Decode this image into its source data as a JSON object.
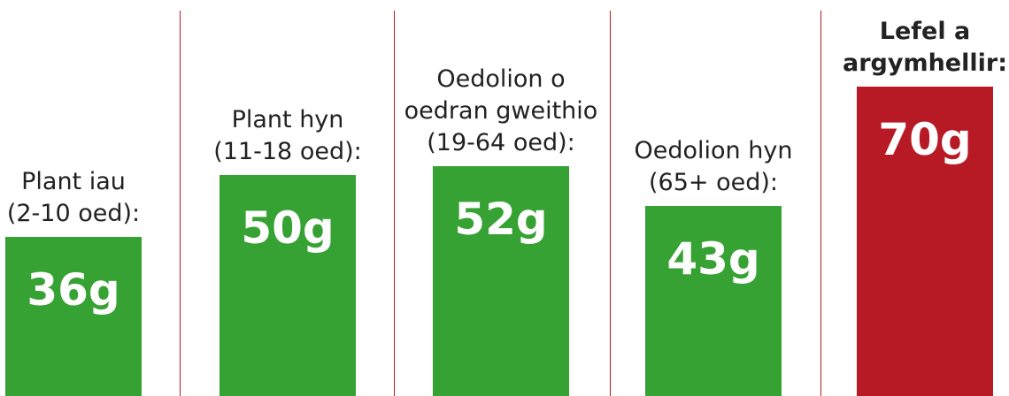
{
  "chart_data": {
    "type": "bar",
    "categories": [
      [
        "Plant iau",
        "(2-10 oed):"
      ],
      [
        "Plant hyn",
        "(11-18 oed):"
      ],
      [
        "Oedolion o",
        "oedran gweithio",
        "(19-64 oed):"
      ],
      [
        "Oedolion hyn",
        "(65+ oed):"
      ],
      [
        "Lefel a",
        "argymhellir:"
      ]
    ],
    "values": [
      36,
      50,
      52,
      43,
      70
    ],
    "value_labels": [
      "36g",
      "50g",
      "52g",
      "43g",
      "70g"
    ],
    "colors": [
      "#37a234",
      "#37a234",
      "#37a234",
      "#37a234",
      "#b81a25"
    ],
    "label_weights": [
      "normal",
      "normal",
      "normal",
      "normal",
      "bold"
    ],
    "divider_color": "#b81a25"
  }
}
